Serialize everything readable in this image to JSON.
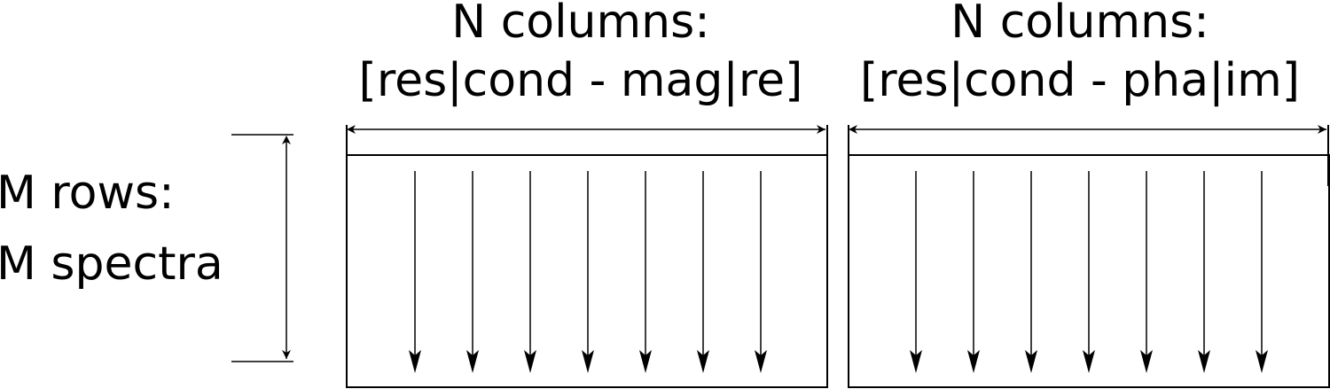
{
  "left_block": {
    "title_line1": "N columns:",
    "title_line2": "[res|cond - mag|re]"
  },
  "right_block": {
    "title_line1": "N columns:",
    "title_line2": "[res|cond - pha|im]"
  },
  "rows_label": {
    "line1": "M rows:",
    "line2": "M spectra"
  },
  "arrows_per_block": 7,
  "stroke_color": "#000000"
}
